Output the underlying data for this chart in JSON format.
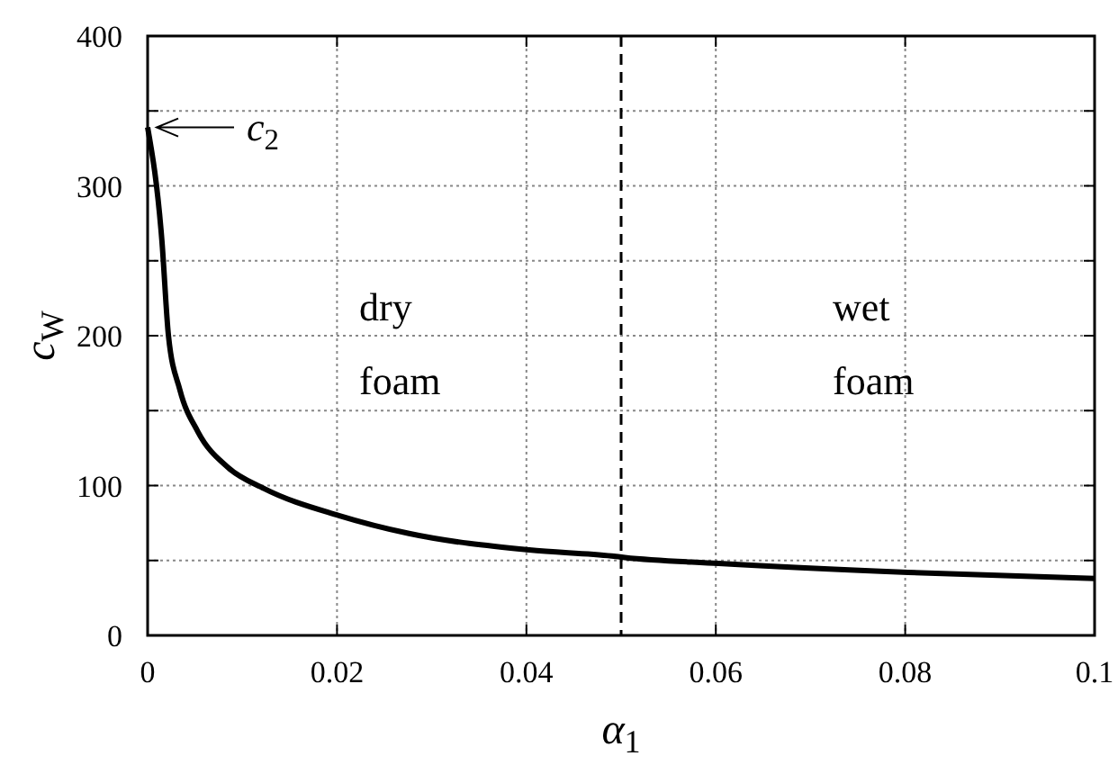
{
  "chart_data": {
    "type": "line",
    "xlabel": "α$_{1}$",
    "ylabel": "c$_{W}$",
    "x": [
      0,
      0.0015,
      0.0022,
      0.0034,
      0.0053,
      0.0085,
      0.0123,
      0.0202,
      0.0276,
      0.0403,
      0.049,
      0.0504,
      0.0603,
      0.0803,
      0.1
    ],
    "series": [
      {
        "color": "#000000",
        "values": [
          339,
          264,
          200,
          164,
          136,
          112,
          98,
          80,
          68,
          57,
          53,
          52,
          48,
          42,
          38
        ]
      }
    ],
    "xlim": [
      0,
      0.1
    ],
    "xticks": [
      0,
      0.02,
      0.04,
      0.06,
      0.08,
      0.1
    ],
    "ylim": [
      0,
      400
    ],
    "yticks": [
      0,
      {
        "value": 50,
        "label": null
      },
      100,
      {
        "value": 150,
        "label": null
      },
      200,
      {
        "value": 250,
        "label": null
      },
      300,
      {
        "value": 350,
        "label": null
      },
      400
    ],
    "grid": true,
    "marker": "none",
    "line_style": "solid",
    "ref_lines": [
      {
        "axis": "x",
        "value": 0.05,
        "line_style": "dashed",
        "color": "#000000"
      }
    ],
    "annotations": [
      {
        "text": "c$_{2}$",
        "x": 0,
        "y": 339
      },
      "dry foam",
      "wet foam"
    ]
  }
}
